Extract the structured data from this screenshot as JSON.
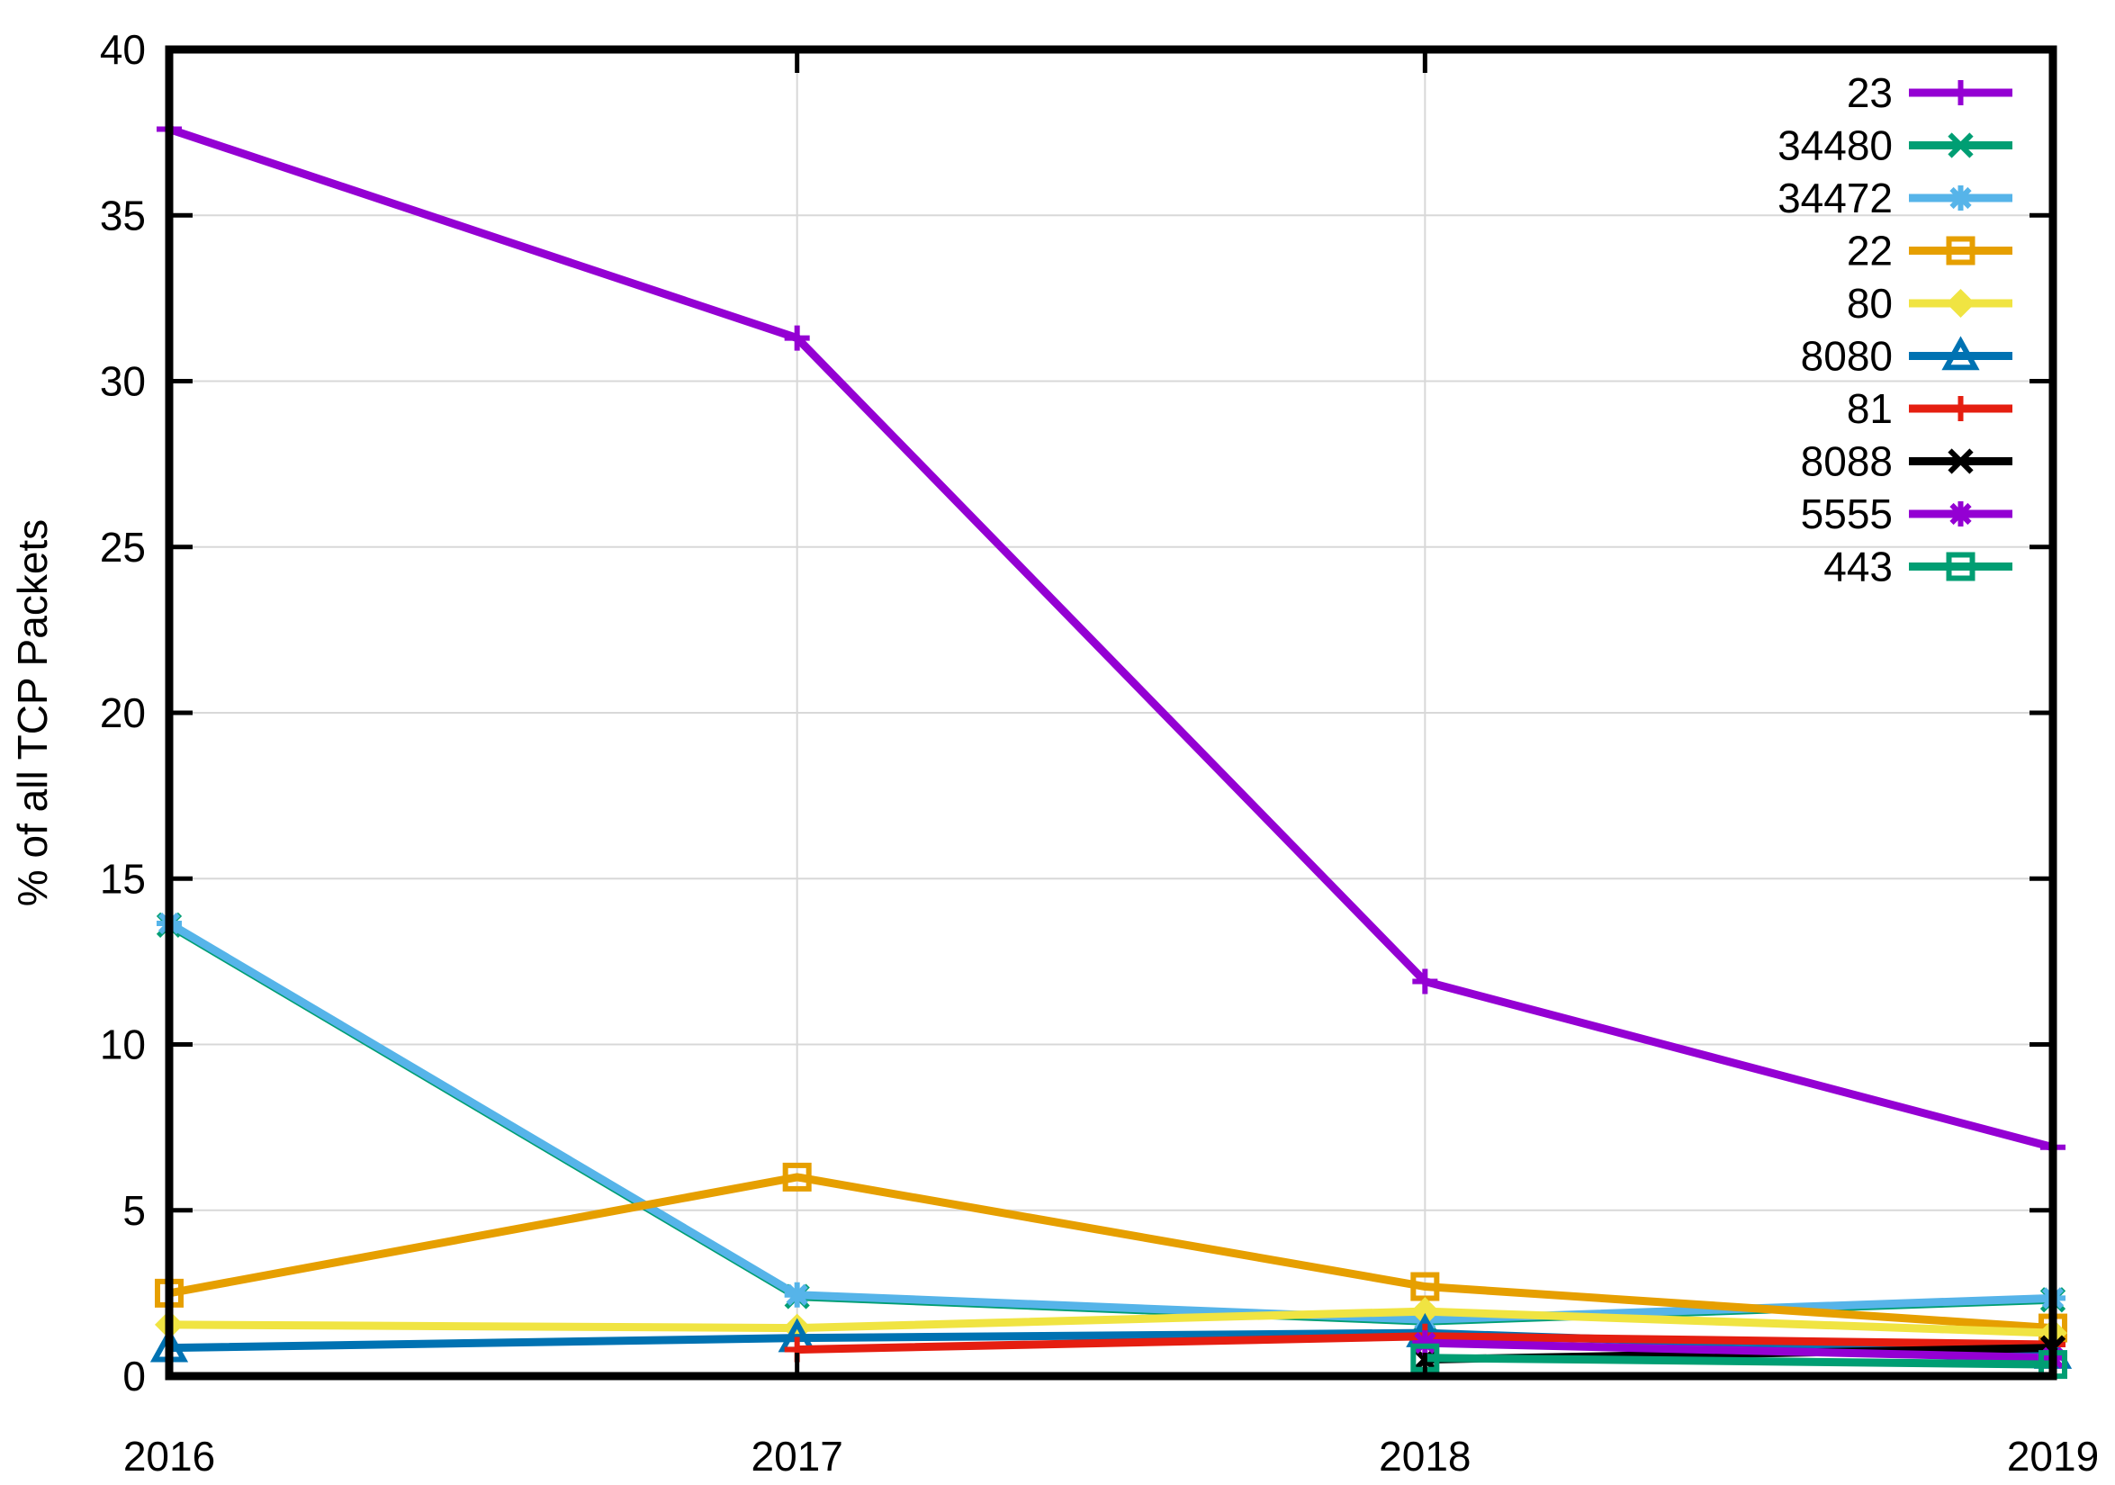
{
  "figure": {
    "background": "#ffffff",
    "border_color": "#000000",
    "grid_color": "#d8d8d8"
  },
  "chart_data": {
    "type": "line",
    "title": "",
    "xlabel": "",
    "ylabel": "% of all TCP Packets",
    "x": [
      2016,
      2017,
      2018,
      2019
    ],
    "x_tick_labels": [
      "2016",
      "2017",
      "2018",
      "2019"
    ],
    "y_ticks": [
      0,
      5,
      10,
      15,
      20,
      25,
      30,
      35,
      40
    ],
    "y_tick_labels": [
      "0",
      "5",
      "10",
      "15",
      "20",
      "25",
      "30",
      "35",
      "40"
    ],
    "ylim": [
      0,
      40
    ],
    "grid": true,
    "legend_position": "top-right-inside",
    "series": [
      {
        "name": "23",
        "color": "#9400d3",
        "marker": "plus",
        "values": [
          37.6,
          31.3,
          11.9,
          6.9
        ]
      },
      {
        "name": "34480",
        "color": "#009e73",
        "marker": "cross",
        "values": [
          13.6,
          2.4,
          1.65,
          2.3
        ]
      },
      {
        "name": "34472",
        "color": "#56b4e9",
        "marker": "asterisk",
        "values": [
          13.65,
          2.45,
          1.7,
          2.35
        ]
      },
      {
        "name": "22",
        "color": "#e69f00",
        "marker": "square-open",
        "values": [
          2.5,
          6.0,
          2.7,
          1.45
        ]
      },
      {
        "name": "80",
        "color": "#f0e442",
        "marker": "diamond-filled",
        "values": [
          1.55,
          1.45,
          1.95,
          1.3
        ]
      },
      {
        "name": "8080",
        "color": "#0072b2",
        "marker": "triangle-open",
        "values": [
          0.85,
          1.15,
          1.3,
          0.65
        ]
      },
      {
        "name": "81",
        "color": "#e51e10",
        "marker": "plus",
        "values": [
          null,
          0.8,
          1.2,
          0.95
        ]
      },
      {
        "name": "8088",
        "color": "#000000",
        "marker": "cross",
        "values": [
          null,
          null,
          0.5,
          0.85
        ]
      },
      {
        "name": "5555",
        "color": "#9400d3",
        "marker": "asterisk",
        "values": [
          null,
          null,
          1.0,
          0.55
        ]
      },
      {
        "name": "443",
        "color": "#009e73",
        "marker": "square-open",
        "values": [
          null,
          null,
          0.55,
          0.35
        ]
      }
    ]
  }
}
